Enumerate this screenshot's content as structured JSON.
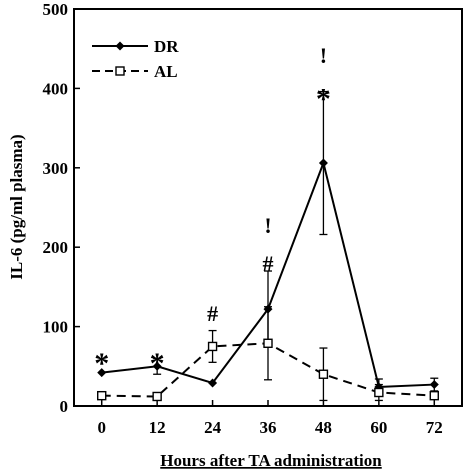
{
  "chart_data": {
    "type": "line",
    "xlabel": "Hours after TA administration",
    "ylabel": "IL-6 (pg/ml plasma)",
    "xlim": [
      -6,
      78
    ],
    "ylim": [
      0,
      500
    ],
    "x_ticks": [
      0,
      12,
      24,
      36,
      48,
      60,
      72
    ],
    "y_ticks": [
      0,
      100,
      200,
      300,
      400,
      500
    ],
    "legend_position": "top-left",
    "series": [
      {
        "name": "DR",
        "marker": "filled-diamond",
        "line_style": "solid",
        "x": [
          0,
          12,
          24,
          36,
          48,
          60,
          72
        ],
        "y": [
          42,
          50,
          29,
          122,
          306,
          24,
          27
        ],
        "error": [
          0,
          10,
          0,
          48,
          90,
          10,
          8
        ]
      },
      {
        "name": "AL",
        "marker": "open-square",
        "line_style": "dashed",
        "x": [
          0,
          12,
          24,
          36,
          48,
          60,
          72
        ],
        "y": [
          13,
          12,
          75,
          79,
          40,
          17,
          13
        ],
        "error": [
          0,
          0,
          20,
          46,
          33,
          10,
          0
        ]
      }
    ],
    "annotations": [
      {
        "x": 0,
        "y": 62,
        "text": "*"
      },
      {
        "x": 12,
        "y": 62,
        "text": "*"
      },
      {
        "x": 24,
        "y": 107,
        "text": "#"
      },
      {
        "x": 36,
        "y": 170,
        "text": "#"
      },
      {
        "x": 36,
        "y": 218,
        "text": "!"
      },
      {
        "x": 48,
        "y": 395,
        "text": "*"
      },
      {
        "x": 48,
        "y": 432,
        "text": "!"
      }
    ]
  }
}
